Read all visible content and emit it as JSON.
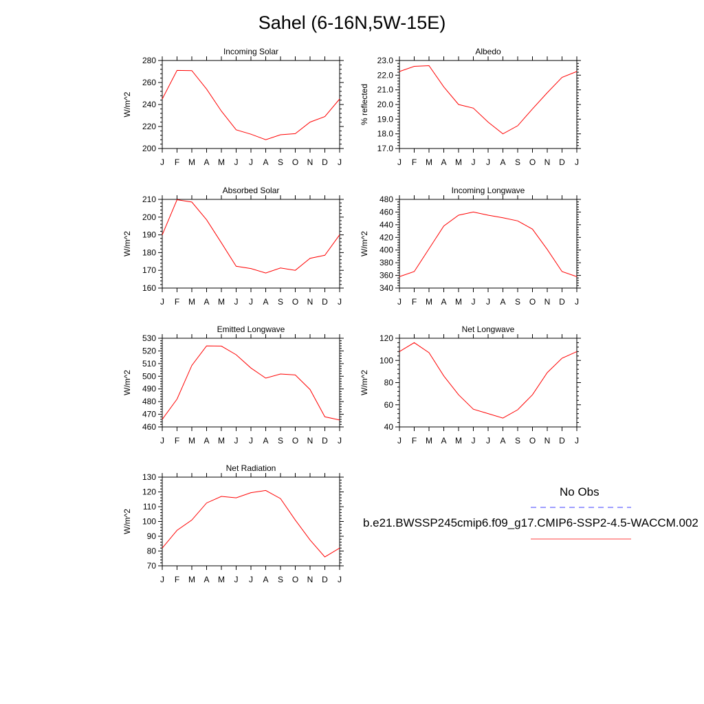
{
  "title": "Sahel (6-16N,5W-15E)",
  "chart_data": [
    {
      "type": "line",
      "title": "Incoming Solar",
      "ylabel": "W/m^2",
      "ylim": [
        200,
        280
      ],
      "yticks": [
        200,
        220,
        240,
        260,
        280
      ],
      "yticklabels": [
        "200",
        "220",
        "240",
        "260",
        "280"
      ],
      "categories": [
        "J",
        "F",
        "M",
        "A",
        "M",
        "J",
        "J",
        "A",
        "S",
        "O",
        "N",
        "D",
        "J"
      ],
      "series": [
        {
          "color": "#ff0000",
          "values": [
            245,
            271,
            270.8,
            254,
            234,
            217,
            213,
            208,
            212.5,
            213.5,
            224,
            229,
            245
          ]
        }
      ]
    },
    {
      "type": "line",
      "title": "Albedo",
      "ylabel": "% reflected",
      "ylim": [
        17,
        23
      ],
      "yticks": [
        17,
        18,
        19,
        20,
        21,
        22,
        23
      ],
      "yticklabels": [
        "17.0",
        "18.0",
        "19.0",
        "20.0",
        "21.0",
        "22.0",
        "23.0"
      ],
      "categories": [
        "J",
        "F",
        "M",
        "A",
        "M",
        "J",
        "J",
        "A",
        "S",
        "O",
        "N",
        "D",
        "J"
      ],
      "series": [
        {
          "color": "#ff0000",
          "values": [
            22.25,
            22.6,
            22.65,
            21.2,
            20.0,
            19.75,
            18.8,
            18.0,
            18.55,
            19.7,
            20.8,
            21.85,
            22.25
          ]
        }
      ]
    },
    {
      "type": "line",
      "title": "Absorbed Solar",
      "ylabel": "W/m^2",
      "ylim": [
        160,
        210
      ],
      "yticks": [
        160,
        170,
        180,
        190,
        200,
        210
      ],
      "yticklabels": [
        "160",
        "170",
        "180",
        "190",
        "200",
        "210"
      ],
      "categories": [
        "J",
        "F",
        "M",
        "A",
        "M",
        "J",
        "J",
        "A",
        "S",
        "O",
        "N",
        "D",
        "J"
      ],
      "series": [
        {
          "color": "#ff0000",
          "values": [
            190,
            209.8,
            208.5,
            198.5,
            185.5,
            172.3,
            171,
            168.5,
            171.3,
            170,
            176.8,
            178.5,
            190
          ]
        }
      ]
    },
    {
      "type": "line",
      "title": "Incoming Longwave",
      "ylabel": "W/m^2",
      "ylim": [
        340,
        480
      ],
      "yticks": [
        340,
        360,
        380,
        400,
        420,
        440,
        460,
        480
      ],
      "yticklabels": [
        "340",
        "360",
        "380",
        "400",
        "420",
        "440",
        "460",
        "480"
      ],
      "categories": [
        "J",
        "F",
        "M",
        "A",
        "M",
        "J",
        "J",
        "A",
        "S",
        "O",
        "N",
        "D",
        "J"
      ],
      "series": [
        {
          "color": "#ff0000",
          "values": [
            358,
            366,
            402,
            438,
            455,
            460,
            455,
            451,
            446,
            433,
            401,
            366,
            358
          ]
        }
      ]
    },
    {
      "type": "line",
      "title": "Emitted Longwave",
      "ylabel": "W/m^2",
      "ylim": [
        460,
        530
      ],
      "yticks": [
        460,
        470,
        480,
        490,
        500,
        510,
        520,
        530
      ],
      "yticklabels": [
        "460",
        "470",
        "480",
        "490",
        "500",
        "510",
        "520",
        "530"
      ],
      "categories": [
        "J",
        "F",
        "M",
        "A",
        "M",
        "J",
        "J",
        "A",
        "S",
        "O",
        "N",
        "D",
        "J"
      ],
      "series": [
        {
          "color": "#ff0000",
          "values": [
            466,
            482,
            508.5,
            524,
            523.8,
            517,
            506.5,
            498.5,
            501.8,
            501,
            489.5,
            468,
            465.5
          ]
        }
      ]
    },
    {
      "type": "line",
      "title": "Net Longwave",
      "ylabel": "W/m^2",
      "ylim": [
        40,
        120
      ],
      "yticks": [
        40,
        60,
        80,
        100,
        120
      ],
      "yticklabels": [
        "40",
        "60",
        "80",
        "100",
        "120"
      ],
      "categories": [
        "J",
        "F",
        "M",
        "A",
        "M",
        "J",
        "J",
        "A",
        "S",
        "O",
        "N",
        "D",
        "J"
      ],
      "series": [
        {
          "color": "#ff0000",
          "values": [
            108,
            116,
            107,
            86,
            69,
            56,
            52,
            48,
            55.5,
            69,
            89,
            102,
            108
          ]
        }
      ]
    },
    {
      "type": "line",
      "title": "Net Radiation",
      "ylabel": "W/m^2",
      "ylim": [
        70,
        130
      ],
      "yticks": [
        70,
        80,
        90,
        100,
        110,
        120,
        130
      ],
      "yticklabels": [
        "70",
        "80",
        "90",
        "100",
        "110",
        "120",
        "130"
      ],
      "categories": [
        "J",
        "F",
        "M",
        "A",
        "M",
        "J",
        "J",
        "A",
        "S",
        "O",
        "N",
        "D",
        "J"
      ],
      "series": [
        {
          "color": "#ff0000",
          "values": [
            82,
            94,
            101,
            112.5,
            117,
            116,
            119.5,
            121,
            115.5,
            101,
            87.5,
            76,
            82
          ]
        }
      ]
    }
  ],
  "legend": [
    {
      "label": "No Obs",
      "color": "#0000ff",
      "style": "dashed"
    },
    {
      "label": "b.e21.BWSSP245cmip6.f09_g17.CMIP6-SSP2-4.5-WACCM.002",
      "color": "#ff0000",
      "style": "solid"
    }
  ]
}
